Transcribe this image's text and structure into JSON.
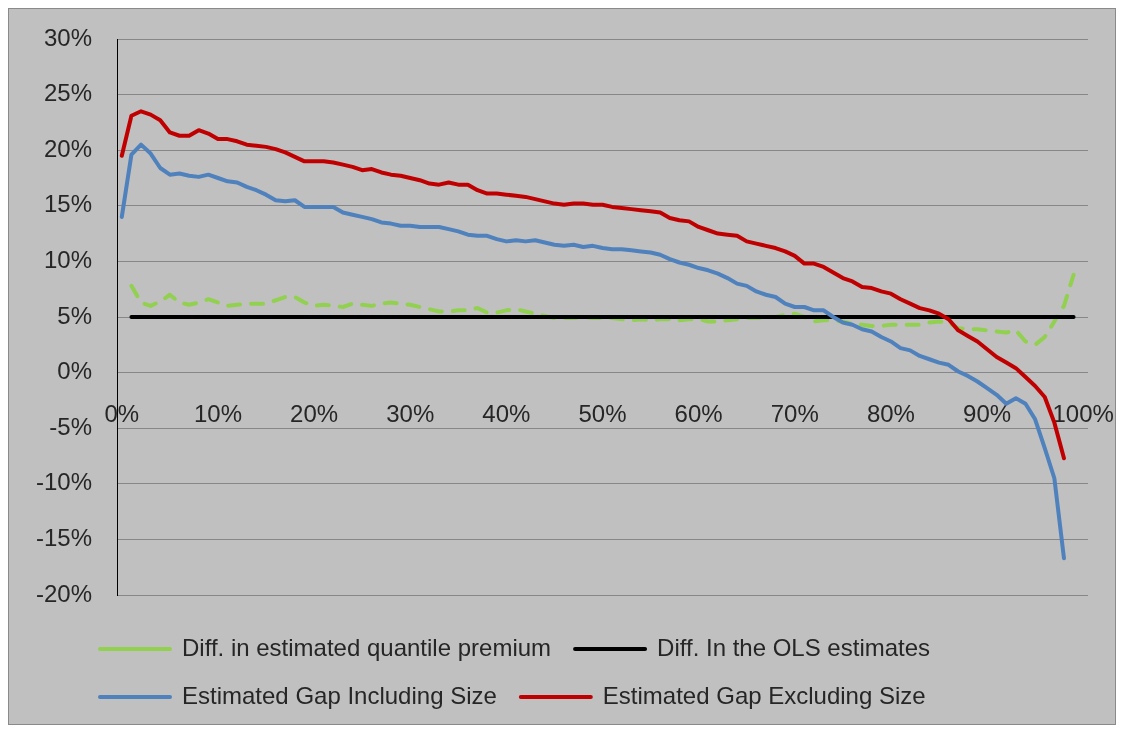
{
  "chart_data": {
    "type": "line",
    "series": [
      {
        "name": "Diff. in estimated quantile premium",
        "color": "#92d050",
        "line_style": "dashed",
        "x": [
          1,
          2,
          3,
          4,
          5,
          6,
          7,
          8,
          9,
          10,
          11,
          12,
          13,
          14,
          15,
          16,
          17,
          18,
          19,
          20,
          21,
          22,
          23,
          24,
          25,
          26,
          27,
          28,
          29,
          30,
          31,
          32,
          33,
          34,
          35,
          36,
          37,
          38,
          39,
          40,
          41,
          42,
          43,
          44,
          45,
          46,
          47,
          48,
          49,
          50,
          51,
          52,
          53,
          54,
          55,
          56,
          57,
          58,
          59,
          60,
          61,
          62,
          63,
          64,
          65,
          66,
          67,
          68,
          69,
          70,
          71,
          72,
          73,
          74,
          75,
          76,
          77,
          78,
          79,
          80,
          81,
          82,
          83,
          84,
          85,
          86,
          87,
          88,
          89,
          90,
          91,
          92,
          93,
          94,
          95,
          96,
          97,
          98,
          99
        ],
        "values": [
          7.8,
          6.3,
          6.0,
          6.4,
          7.0,
          6.3,
          6.1,
          6.3,
          6.6,
          6.3,
          6.0,
          6.1,
          6.2,
          6.2,
          6.2,
          6.5,
          6.8,
          6.8,
          6.3,
          6.0,
          6.1,
          6.0,
          5.9,
          6.2,
          6.1,
          6.0,
          6.2,
          6.3,
          6.2,
          6.1,
          5.9,
          5.7,
          5.5,
          5.5,
          5.6,
          5.6,
          5.8,
          5.4,
          5.4,
          5.6,
          5.7,
          5.5,
          5.3,
          5.1,
          4.9,
          4.9,
          4.9,
          5.0,
          4.9,
          4.9,
          4.9,
          4.8,
          4.7,
          4.8,
          4.7,
          4.8,
          4.8,
          4.7,
          4.8,
          4.8,
          4.6,
          4.6,
          4.7,
          4.8,
          4.9,
          4.9,
          5.0,
          5.0,
          5.2,
          5.3,
          5.0,
          4.6,
          4.7,
          4.7,
          4.6,
          4.4,
          4.3,
          4.2,
          4.2,
          4.3,
          4.3,
          4.3,
          4.3,
          4.5,
          4.6,
          4.5,
          4.0,
          3.9,
          3.9,
          3.8,
          3.7,
          3.6,
          3.8,
          2.8,
          2.5,
          3.2,
          4.6,
          6.0,
          8.8
        ]
      },
      {
        "name": "Diff. In the OLS estimates",
        "color": "#000000",
        "x": [
          1,
          99
        ],
        "values": [
          5,
          5
        ]
      },
      {
        "name": "Estimated Gap Including Size",
        "color": "#4f81bd",
        "x": [
          0,
          1,
          2,
          3,
          4,
          5,
          6,
          7,
          8,
          9,
          10,
          11,
          12,
          13,
          14,
          15,
          16,
          17,
          18,
          19,
          20,
          21,
          22,
          23,
          24,
          25,
          26,
          27,
          28,
          29,
          30,
          31,
          32,
          33,
          34,
          35,
          36,
          37,
          38,
          39,
          40,
          41,
          42,
          43,
          44,
          45,
          46,
          47,
          48,
          49,
          50,
          51,
          52,
          53,
          54,
          55,
          56,
          57,
          58,
          59,
          60,
          61,
          62,
          63,
          64,
          65,
          66,
          67,
          68,
          69,
          70,
          71,
          72,
          73,
          74,
          75,
          76,
          77,
          78,
          79,
          80,
          81,
          82,
          83,
          84,
          85,
          86,
          87,
          88,
          89,
          90,
          91,
          92,
          93,
          94,
          95,
          96,
          97,
          98
        ],
        "values": [
          14.0,
          19.6,
          20.5,
          19.7,
          18.4,
          17.8,
          17.9,
          17.7,
          17.6,
          17.8,
          17.5,
          17.2,
          17.1,
          16.7,
          16.4,
          16.0,
          15.5,
          15.4,
          15.5,
          14.9,
          14.9,
          14.9,
          14.9,
          14.4,
          14.2,
          14.0,
          13.8,
          13.5,
          13.4,
          13.2,
          13.2,
          13.1,
          13.1,
          13.1,
          12.9,
          12.7,
          12.4,
          12.3,
          12.3,
          12.0,
          11.8,
          11.9,
          11.8,
          11.9,
          11.7,
          11.5,
          11.4,
          11.5,
          11.3,
          11.4,
          11.2,
          11.1,
          11.1,
          11.0,
          10.9,
          10.8,
          10.6,
          10.2,
          9.9,
          9.7,
          9.4,
          9.2,
          8.9,
          8.5,
          8.0,
          7.8,
          7.3,
          7.0,
          6.8,
          6.2,
          5.9,
          5.9,
          5.6,
          5.6,
          5.0,
          4.5,
          4.3,
          3.9,
          3.7,
          3.2,
          2.8,
          2.2,
          2.0,
          1.5,
          1.2,
          0.9,
          0.7,
          0.1,
          -0.3,
          -0.8,
          -1.4,
          -2.0,
          -2.8,
          -2.3,
          -2.8,
          -4.2,
          -6.8,
          -9.5,
          -16.7
        ]
      },
      {
        "name": "Estimated Gap Excluding Size",
        "color": "#c00000",
        "x": [
          0,
          1,
          2,
          3,
          4,
          5,
          6,
          7,
          8,
          9,
          10,
          11,
          12,
          13,
          14,
          15,
          16,
          17,
          18,
          19,
          20,
          21,
          22,
          23,
          24,
          25,
          26,
          27,
          28,
          29,
          30,
          31,
          32,
          33,
          34,
          35,
          36,
          37,
          38,
          39,
          40,
          41,
          42,
          43,
          44,
          45,
          46,
          47,
          48,
          49,
          50,
          51,
          52,
          53,
          54,
          55,
          56,
          57,
          58,
          59,
          60,
          61,
          62,
          63,
          64,
          65,
          66,
          67,
          68,
          69,
          70,
          71,
          72,
          73,
          74,
          75,
          76,
          77,
          78,
          79,
          80,
          81,
          82,
          83,
          84,
          85,
          86,
          87,
          88,
          89,
          90,
          91,
          92,
          93,
          94,
          95,
          96,
          97,
          98
        ],
        "values": [
          19.5,
          23.1,
          23.5,
          23.2,
          22.7,
          21.6,
          21.3,
          21.3,
          21.8,
          21.5,
          21.0,
          21.0,
          20.8,
          20.5,
          20.4,
          20.3,
          20.1,
          19.8,
          19.4,
          19.0,
          19.0,
          19.0,
          18.9,
          18.7,
          18.5,
          18.2,
          18.3,
          18.0,
          17.8,
          17.7,
          17.5,
          17.3,
          17.0,
          16.9,
          17.1,
          16.9,
          16.9,
          16.4,
          16.1,
          16.1,
          16.0,
          15.9,
          15.8,
          15.6,
          15.4,
          15.2,
          15.1,
          15.2,
          15.2,
          15.1,
          15.1,
          14.9,
          14.8,
          14.7,
          14.6,
          14.5,
          14.4,
          13.9,
          13.7,
          13.6,
          13.1,
          12.8,
          12.5,
          12.4,
          12.3,
          11.8,
          11.6,
          11.4,
          11.2,
          10.9,
          10.5,
          9.8,
          9.8,
          9.5,
          9.0,
          8.5,
          8.2,
          7.7,
          7.6,
          7.3,
          7.1,
          6.6,
          6.2,
          5.8,
          5.6,
          5.3,
          4.8,
          3.8,
          3.3,
          2.8,
          2.1,
          1.4,
          0.9,
          0.4,
          -0.4,
          -1.2,
          -2.2,
          -4.5,
          -7.7
        ]
      }
    ],
    "xlim": [
      -0.5,
      100.5
    ],
    "xticks": [
      {
        "value": 0,
        "label": "0%"
      },
      {
        "value": 10,
        "label": "10%"
      },
      {
        "value": 20,
        "label": "20%"
      },
      {
        "value": 30,
        "label": "30%"
      },
      {
        "value": 40,
        "label": "40%"
      },
      {
        "value": 50,
        "label": "50%"
      },
      {
        "value": 60,
        "label": "60%"
      },
      {
        "value": 70,
        "label": "70%"
      },
      {
        "value": 80,
        "label": "80%"
      },
      {
        "value": 90,
        "label": "90%"
      },
      {
        "value": 100,
        "label": "100%"
      }
    ],
    "ylim": [
      -20,
      30
    ],
    "yticks": [
      {
        "value": -20,
        "label": "-20%"
      },
      {
        "value": -15,
        "label": "-15%"
      },
      {
        "value": -10,
        "label": "-10%"
      },
      {
        "value": -5,
        "label": "-5%"
      },
      {
        "value": 0,
        "label": "0%"
      },
      {
        "value": 5,
        "label": "5%"
      },
      {
        "value": 10,
        "label": "10%"
      },
      {
        "value": 15,
        "label": "15%"
      },
      {
        "value": 20,
        "label": "20%"
      },
      {
        "value": 25,
        "label": "25%"
      },
      {
        "value": 30,
        "label": "30%"
      }
    ],
    "grid": "y",
    "legend": "bottom",
    "marker": "none",
    "line_style": "solid"
  }
}
